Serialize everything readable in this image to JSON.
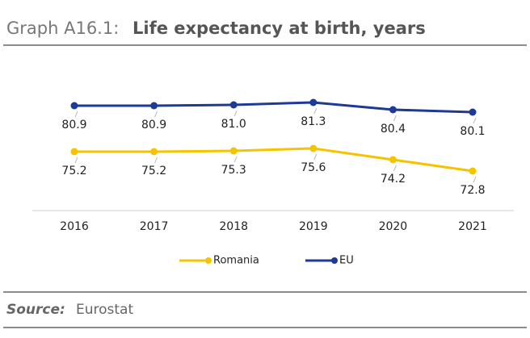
{
  "chart_data": {
    "type": "line",
    "title_prefix": "Graph A16.1:",
    "title": "Life expectancy at birth, years",
    "categories": [
      "2016",
      "2017",
      "2018",
      "2019",
      "2020",
      "2021"
    ],
    "series": [
      {
        "name": "Romania",
        "color": "#f5c400",
        "values": [
          75.2,
          75.2,
          75.3,
          75.6,
          74.2,
          72.8
        ],
        "value_labels": [
          "75.2",
          "75.2",
          "75.3",
          "75.6",
          "74.2",
          "72.8"
        ]
      },
      {
        "name": "EU",
        "color": "#1d3a96",
        "values": [
          80.9,
          80.9,
          81.0,
          81.3,
          80.4,
          80.1
        ],
        "value_labels": [
          "80.9",
          "80.9",
          "81.0",
          "81.3",
          "80.4",
          "80.1"
        ]
      }
    ],
    "ylim": [
      68,
      84
    ],
    "legend": "bottom",
    "source_label": "Source:",
    "source": "Eurostat"
  }
}
